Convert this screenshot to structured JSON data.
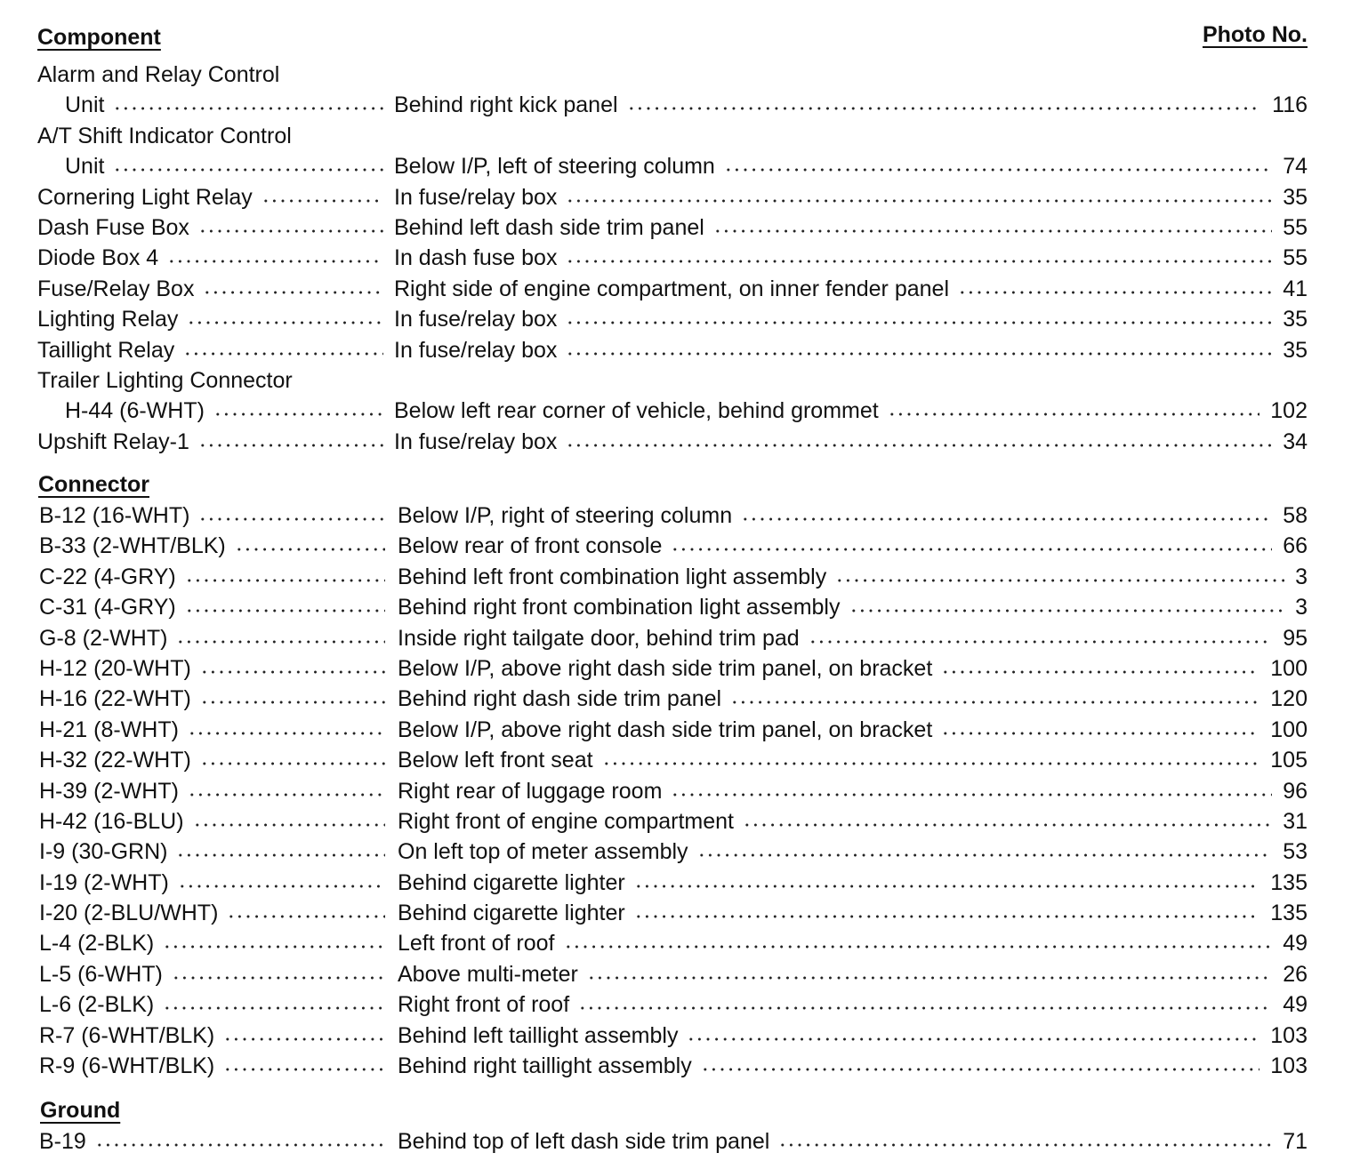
{
  "headers": {
    "component": "Component",
    "photo_no": "Photo No.",
    "connector": "Connector",
    "ground": "Ground"
  },
  "components": [
    {
      "name": "Alarm and Relay Control",
      "cont": "Unit",
      "location": "Behind right kick panel",
      "photo": "116"
    },
    {
      "name": "A/T Shift Indicator Control",
      "cont": "Unit",
      "location": "Below I/P, left of steering column",
      "photo": "74"
    },
    {
      "name": "Cornering Light Relay",
      "location": "In fuse/relay box",
      "photo": "35"
    },
    {
      "name": "Dash Fuse Box",
      "location": "Behind left dash side trim panel",
      "photo": "55"
    },
    {
      "name": "Diode Box 4",
      "location": "In dash fuse box",
      "photo": "55"
    },
    {
      "name": "Fuse/Relay Box",
      "location": "Right side of engine compartment, on inner fender panel",
      "photo": "41"
    },
    {
      "name": "Lighting Relay",
      "location": "In fuse/relay box",
      "photo": "35"
    },
    {
      "name": "Taillight Relay",
      "location": "In fuse/relay box",
      "photo": "35"
    },
    {
      "name": "Trailer Lighting Connector",
      "cont": "H-44 (6-WHT)",
      "location": "Below left rear corner of vehicle, behind grommet",
      "photo": "102"
    },
    {
      "name": "Upshift Relay-1",
      "location": "In fuse/relay box",
      "photo": "34"
    }
  ],
  "connectors": [
    {
      "name": "B-12 (16-WHT)",
      "location": "Below I/P, right of steering column",
      "photo": "58"
    },
    {
      "name": "B-33 (2-WHT/BLK)",
      "location": "Below rear of front console",
      "photo": "66"
    },
    {
      "name": "C-22 (4-GRY)",
      "location": "Behind left front combination light assembly",
      "photo": "3"
    },
    {
      "name": "C-31 (4-GRY)",
      "location": "Behind right front combination light assembly",
      "photo": "3"
    },
    {
      "name": "G-8 (2-WHT)",
      "location": "Inside right tailgate door, behind trim pad",
      "photo": "95"
    },
    {
      "name": "H-12 (20-WHT)",
      "location": "Below I/P, above right dash side trim panel, on bracket",
      "photo": "100"
    },
    {
      "name": "H-16 (22-WHT)",
      "location": "Behind right dash side trim panel",
      "photo": "120"
    },
    {
      "name": "H-21 (8-WHT)",
      "location": "Below I/P, above right dash side trim panel, on bracket",
      "photo": "100"
    },
    {
      "name": "H-32 (22-WHT)",
      "location": "Below left front seat",
      "photo": "105"
    },
    {
      "name": "H-39 (2-WHT)",
      "location": "Right rear of luggage room",
      "photo": "96"
    },
    {
      "name": "H-42 (16-BLU)",
      "location": "Right front of engine compartment",
      "photo": "31"
    },
    {
      "name": "I-9 (30-GRN)",
      "location": "On left top of meter assembly",
      "photo": "53"
    },
    {
      "name": "I-19 (2-WHT)",
      "location": "Behind cigarette lighter",
      "photo": "135"
    },
    {
      "name": "I-20 (2-BLU/WHT)",
      "location": "Behind cigarette lighter",
      "photo": "135"
    },
    {
      "name": "L-4 (2-BLK)",
      "location": "Left front of roof",
      "photo": "49"
    },
    {
      "name": "L-5 (6-WHT)",
      "location": "Above multi-meter",
      "photo": "26"
    },
    {
      "name": "L-6 (2-BLK)",
      "location": "Right front of roof",
      "photo": "49"
    },
    {
      "name": "R-7 (6-WHT/BLK)",
      "location": "Behind left taillight assembly",
      "photo": "103"
    },
    {
      "name": "R-9 (6-WHT/BLK)",
      "location": "Behind right taillight assembly",
      "photo": "103"
    }
  ],
  "grounds": [
    {
      "name": "B-19",
      "location": "Behind top of left dash side trim panel",
      "photo": "71"
    }
  ]
}
